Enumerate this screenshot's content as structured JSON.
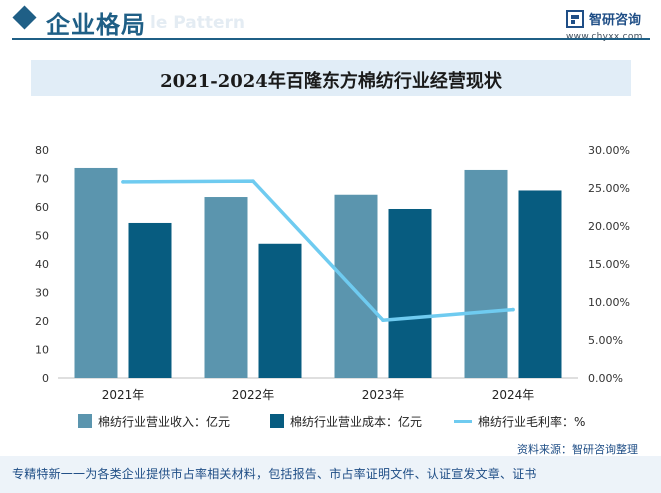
{
  "header": {
    "section_title": "企业格局",
    "watermark_text": "le Pattern",
    "brand_name": "智研咨询",
    "brand_url": "www.chyxx.com"
  },
  "chart_data": {
    "type": "bar",
    "title": "2021-2024年百隆东方棉纺行业经营现状",
    "categories": [
      "2021年",
      "2022年",
      "2023年",
      "2024年"
    ],
    "series": [
      {
        "name": "棉纺行业营业收入：亿元",
        "type": "bar",
        "axis": "left",
        "color": "#5b95ae",
        "values": [
          73.7,
          63.5,
          64.3,
          73.0
        ]
      },
      {
        "name": "棉纺行业营业成本：亿元",
        "type": "bar",
        "axis": "left",
        "color": "#075c80",
        "values": [
          54.4,
          47.1,
          59.3,
          65.8
        ]
      },
      {
        "name": "棉纺行业毛利率：%",
        "type": "line",
        "axis": "right",
        "color": "#6fcbf0",
        "values": [
          25.8,
          25.9,
          7.6,
          9.0
        ]
      }
    ],
    "y_left": {
      "min": 0,
      "max": 80,
      "ticks": [
        0,
        10,
        20,
        30,
        40,
        50,
        60,
        70,
        80
      ]
    },
    "y_right": {
      "min": 0,
      "max": 30,
      "ticks": [
        0,
        5,
        10,
        15,
        20,
        25,
        30
      ],
      "tick_labels": [
        "0.00%",
        "5.00%",
        "10.00%",
        "15.00%",
        "20.00%",
        "25.00%",
        "30.00%"
      ]
    },
    "grid": false,
    "legend_position": "bottom"
  },
  "source": "资料来源：智研咨询整理",
  "footer": "专精特新一一为各类企业提供市占率相关材料，包括报告、市占率证明文件、认证宣发文章、证书"
}
